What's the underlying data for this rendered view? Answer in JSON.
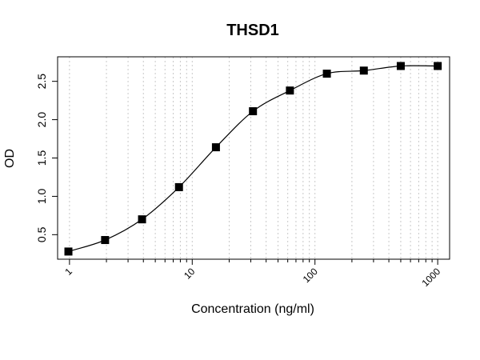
{
  "chart_data": {
    "type": "scatter",
    "title": "THSD1",
    "xlabel": "Concentration (ng/ml)",
    "ylabel": "OD",
    "x_scale": "log",
    "xlim": [
      0.8,
      1250
    ],
    "ylim": [
      0.18,
      2.82
    ],
    "x_ticks": [
      1,
      10,
      100,
      1000
    ],
    "x_tick_labels": [
      "1",
      "10",
      "100",
      "1000"
    ],
    "y_ticks": [
      0.5,
      1.0,
      1.5,
      2.0,
      2.5
    ],
    "y_tick_labels": [
      "0.5",
      "1.0",
      "1.5",
      "2.0",
      "2.5"
    ],
    "grid": "vertical dotted at log minor ticks",
    "points": {
      "x": [
        0.98,
        1.95,
        3.9,
        7.8,
        15.6,
        31.25,
        62.5,
        125,
        250,
        500,
        1000
      ],
      "y": [
        0.28,
        0.43,
        0.7,
        1.12,
        1.64,
        2.11,
        2.38,
        2.6,
        2.64,
        2.7,
        2.7
      ]
    },
    "fit_curve": "4-parameter logistic",
    "marker": "filled square",
    "colors": {
      "points": "#000000",
      "curve": "#000000",
      "grid": "#c8c8c8"
    }
  }
}
